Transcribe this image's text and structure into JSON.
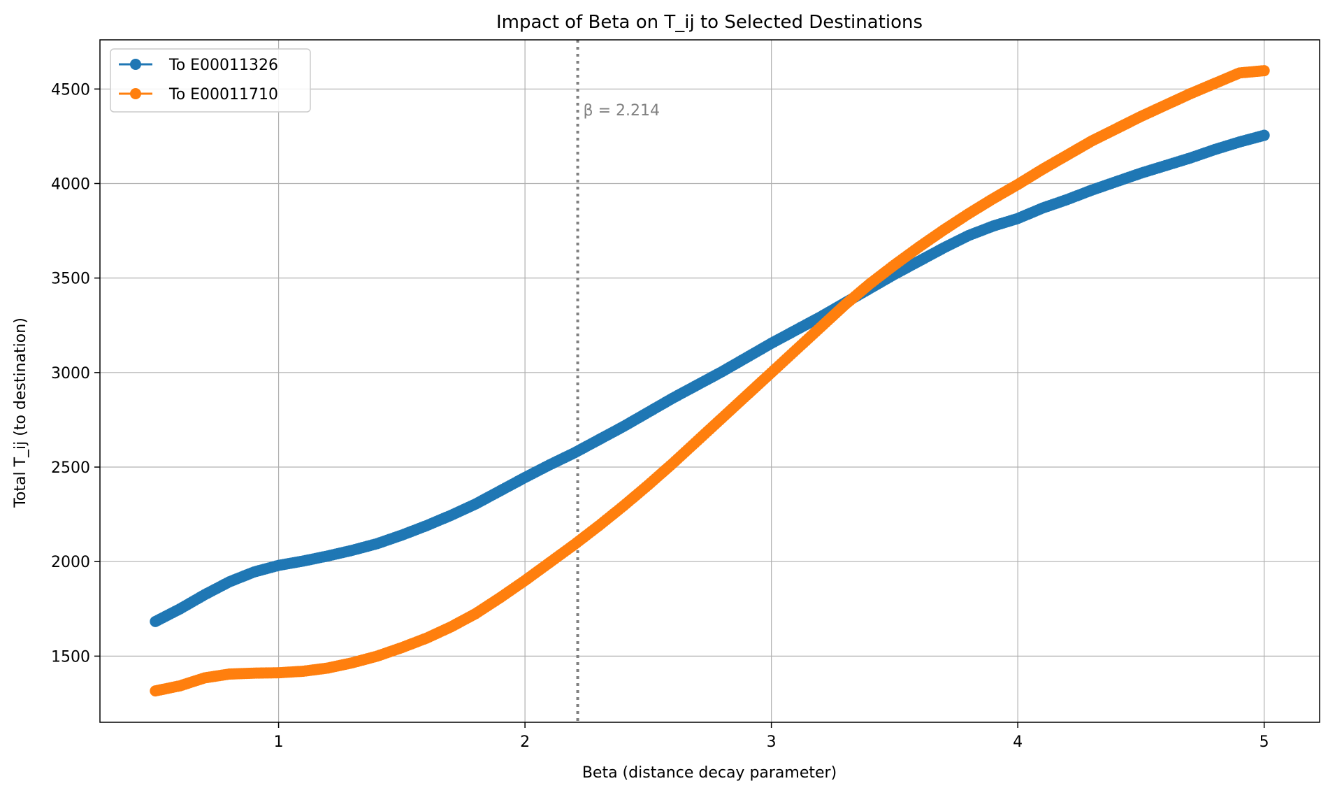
{
  "chart_data": {
    "type": "line",
    "title": "Impact of Beta on T_ij to Selected Destinations",
    "xlabel": "Beta (distance decay parameter)",
    "ylabel": "Total T_ij (to destination)",
    "xlim": [
      0.275,
      5.225
    ],
    "ylim": [
      1150,
      4760
    ],
    "xticks": [
      1,
      2,
      3,
      4,
      5
    ],
    "xtick_labels": [
      "1",
      "2",
      "3",
      "4",
      "5"
    ],
    "yticks": [
      1500,
      2000,
      2500,
      3000,
      3500,
      4000,
      4500
    ],
    "ytick_labels": [
      "1500",
      "2000",
      "2500",
      "3000",
      "3500",
      "4000",
      "4500"
    ],
    "grid": true,
    "legend_position": "top-left",
    "marker": "circle",
    "annotation": {
      "x": 2.214,
      "label": "β = 2.214",
      "color": "#808080",
      "style": "dotted"
    },
    "series": [
      {
        "name": "To E00011326",
        "color": "#1f77b4",
        "x": [
          0.5,
          0.6,
          0.7,
          0.8,
          0.9,
          1.0,
          1.1,
          1.2,
          1.3,
          1.4,
          1.5,
          1.6,
          1.7,
          1.8,
          1.9,
          2.0,
          2.1,
          2.2,
          2.3,
          2.4,
          2.5,
          2.6,
          2.7,
          2.8,
          2.9,
          3.0,
          3.1,
          3.2,
          3.3,
          3.4,
          3.5,
          3.6,
          3.7,
          3.8,
          3.9,
          4.0,
          4.1,
          4.2,
          4.3,
          4.4,
          4.5,
          4.6,
          4.7,
          4.8,
          4.9,
          5.0
        ],
        "values": [
          1683,
          1750,
          1825,
          1893,
          1945,
          1980,
          2003,
          2030,
          2060,
          2095,
          2140,
          2190,
          2245,
          2305,
          2375,
          2445,
          2512,
          2575,
          2645,
          2715,
          2790,
          2865,
          2935,
          3005,
          3080,
          3155,
          3225,
          3295,
          3370,
          3445,
          3520,
          3590,
          3660,
          3725,
          3775,
          3815,
          3870,
          3915,
          3965,
          4010,
          4055,
          4095,
          4135,
          4180,
          4220,
          4255
        ]
      },
      {
        "name": "To E00011710",
        "color": "#ff7f0e",
        "x": [
          0.5,
          0.6,
          0.7,
          0.8,
          0.9,
          1.0,
          1.1,
          1.2,
          1.3,
          1.4,
          1.5,
          1.6,
          1.7,
          1.8,
          1.9,
          2.0,
          2.1,
          2.2,
          2.3,
          2.4,
          2.5,
          2.6,
          2.7,
          2.8,
          2.9,
          3.0,
          3.1,
          3.2,
          3.3,
          3.4,
          3.5,
          3.6,
          3.7,
          3.8,
          3.9,
          4.0,
          4.1,
          4.2,
          4.3,
          4.4,
          4.5,
          4.6,
          4.7,
          4.8,
          4.9,
          5.0
        ],
        "values": [
          1316,
          1343,
          1385,
          1405,
          1410,
          1412,
          1420,
          1437,
          1465,
          1500,
          1545,
          1595,
          1655,
          1725,
          1810,
          1900,
          1995,
          2090,
          2190,
          2295,
          2405,
          2520,
          2640,
          2760,
          2880,
          3000,
          3120,
          3240,
          3360,
          3470,
          3570,
          3665,
          3755,
          3840,
          3920,
          3995,
          4075,
          4150,
          4225,
          4290,
          4355,
          4415,
          4475,
          4530,
          4585,
          4597
        ]
      }
    ]
  }
}
